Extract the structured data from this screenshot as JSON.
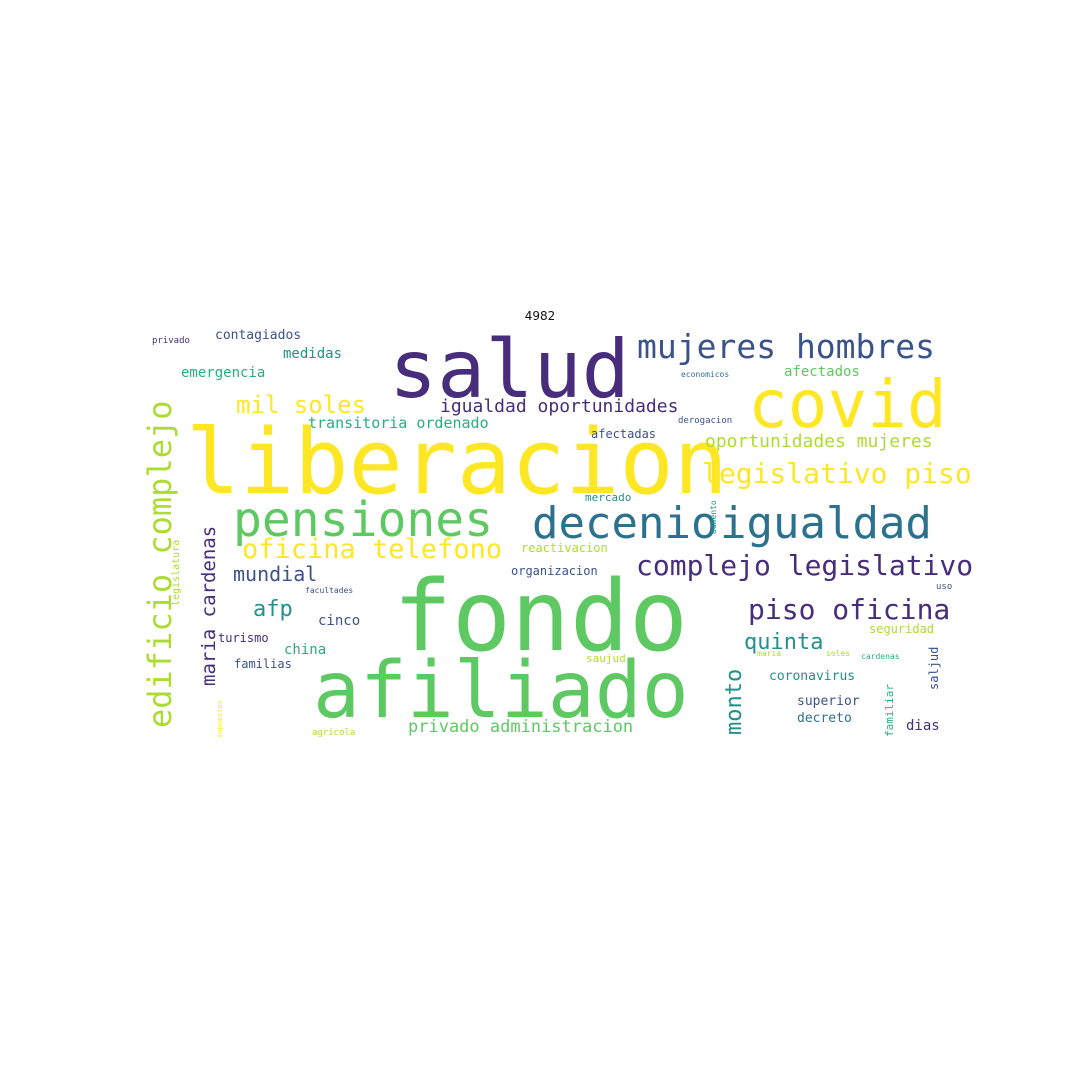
{
  "title": "4982",
  "palette": {
    "dark_purple": "#472D7B",
    "indigo": "#3B528B",
    "blue": "#2C728E",
    "teal": "#21918C",
    "green_teal": "#28AE80",
    "green": "#5EC962",
    "lime": "#ADDC30",
    "yellow": "#FDE725"
  },
  "words": [
    {
      "id": "fondo",
      "text": "fondo",
      "color": "#5EC962"
    },
    {
      "id": "liberacion",
      "text": "liberacion",
      "color": "#FDE725"
    },
    {
      "id": "afiliado",
      "text": "afiliado",
      "color": "#5EC962"
    },
    {
      "id": "salud",
      "text": "salud",
      "color": "#472D7B"
    },
    {
      "id": "covid",
      "text": "covid",
      "color": "#FDE725"
    },
    {
      "id": "pensiones",
      "text": "pensiones",
      "color": "#5EC962"
    },
    {
      "id": "decenio",
      "text": "decenio",
      "color": "#2C728E"
    },
    {
      "id": "igualdad",
      "text": "igualdad",
      "color": "#2C728E"
    },
    {
      "id": "mujeres-hombres",
      "text": "mujeres hombres",
      "color": "#3B528B"
    },
    {
      "id": "edificio-complejo",
      "text": "edificio complejo",
      "color": "#ADDC30"
    },
    {
      "id": "legislativo-piso",
      "text": "legislativo piso",
      "color": "#FDE725"
    },
    {
      "id": "complejo-legislativo",
      "text": "complejo legislativo",
      "color": "#472D7B"
    },
    {
      "id": "piso-oficina",
      "text": "piso oficina",
      "color": "#472D7B"
    },
    {
      "id": "oficina-telefono",
      "text": "oficina telefono",
      "color": "#FDE725"
    },
    {
      "id": "mil-soles",
      "text": "mil soles",
      "color": "#FDE725"
    },
    {
      "id": "igualdad-oportunidades",
      "text": "igualdad oportunidades",
      "color": "#472D7B"
    },
    {
      "id": "oportunidades-mujeres",
      "text": "oportunidades mujeres",
      "color": "#ADDC30"
    },
    {
      "id": "maria-cardenas",
      "text": "maria cardenas",
      "color": "#472D7B"
    },
    {
      "id": "monto",
      "text": "monto",
      "color": "#21918C"
    },
    {
      "id": "quinta",
      "text": "quinta",
      "color": "#21918C"
    },
    {
      "id": "mundial",
      "text": "mundial",
      "color": "#3B528B"
    },
    {
      "id": "afp",
      "text": "afp",
      "color": "#21918C"
    },
    {
      "id": "transitoria-ordenado",
      "text": "transitoria ordenado",
      "color": "#28AE80"
    },
    {
      "id": "privado-administracion",
      "text": "privado administracion",
      "color": "#5EC962"
    },
    {
      "id": "emergencia",
      "text": "emergencia",
      "color": "#28AE80"
    },
    {
      "id": "medidas",
      "text": "medidas",
      "color": "#21918C"
    },
    {
      "id": "contagiados",
      "text": "contagiados",
      "color": "#3B528B"
    },
    {
      "id": "afectados",
      "text": "afectados",
      "color": "#5EC962"
    },
    {
      "id": "afectadas",
      "text": "afectadas",
      "color": "#3B528B"
    },
    {
      "id": "cinco",
      "text": "cinco",
      "color": "#3B528B"
    },
    {
      "id": "china",
      "text": "china",
      "color": "#28AE80"
    },
    {
      "id": "turismo",
      "text": "turismo",
      "color": "#472D7B"
    },
    {
      "id": "familias",
      "text": "familias",
      "color": "#3B528B"
    },
    {
      "id": "seguridad",
      "text": "seguridad",
      "color": "#ADDC30"
    },
    {
      "id": "coronavirus",
      "text": "coronavirus",
      "color": "#21918C"
    },
    {
      "id": "superior",
      "text": "superior",
      "color": "#3B528B"
    },
    {
      "id": "decreto",
      "text": "decreto",
      "color": "#2C728E"
    },
    {
      "id": "dias",
      "text": "dias",
      "color": "#472D7B"
    },
    {
      "id": "saljud",
      "text": "saljud",
      "color": "#3B528B"
    },
    {
      "id": "familiar",
      "text": "familiar",
      "color": "#28AE80"
    },
    {
      "id": "organizacion",
      "text": "organizacion",
      "color": "#3B528B"
    },
    {
      "id": "reactivacion",
      "text": "reactivacion",
      "color": "#ADDC30"
    },
    {
      "id": "mercado",
      "text": "mercado",
      "color": "#21918C"
    },
    {
      "id": "saujud",
      "text": "saujud",
      "color": "#ADDC30"
    },
    {
      "id": "legislatura",
      "text": "legislatura",
      "color": "#ADDC30"
    },
    {
      "id": "facultades",
      "text": "facultades",
      "color": "#3B528B"
    },
    {
      "id": "agricola",
      "text": "agricola",
      "color": "#ADDC30"
    },
    {
      "id": "supuestos",
      "text": "supuestos",
      "color": "#FDE725"
    },
    {
      "id": "privado",
      "text": "privado",
      "color": "#472D7B"
    },
    {
      "id": "economicos",
      "text": "economicos",
      "color": "#2C728E"
    },
    {
      "id": "derogacion",
      "text": "derogacion",
      "color": "#3B528B"
    },
    {
      "id": "aumento",
      "text": "aumento",
      "color": "#21918C"
    },
    {
      "id": "maria",
      "text": "maria",
      "color": "#ADDC30"
    },
    {
      "id": "soles",
      "text": "soles",
      "color": "#ADDC30"
    },
    {
      "id": "cardenas",
      "text": "cardenas",
      "color": "#28AE80"
    },
    {
      "id": "uso",
      "text": "uso",
      "color": "#3B528B"
    }
  ]
}
